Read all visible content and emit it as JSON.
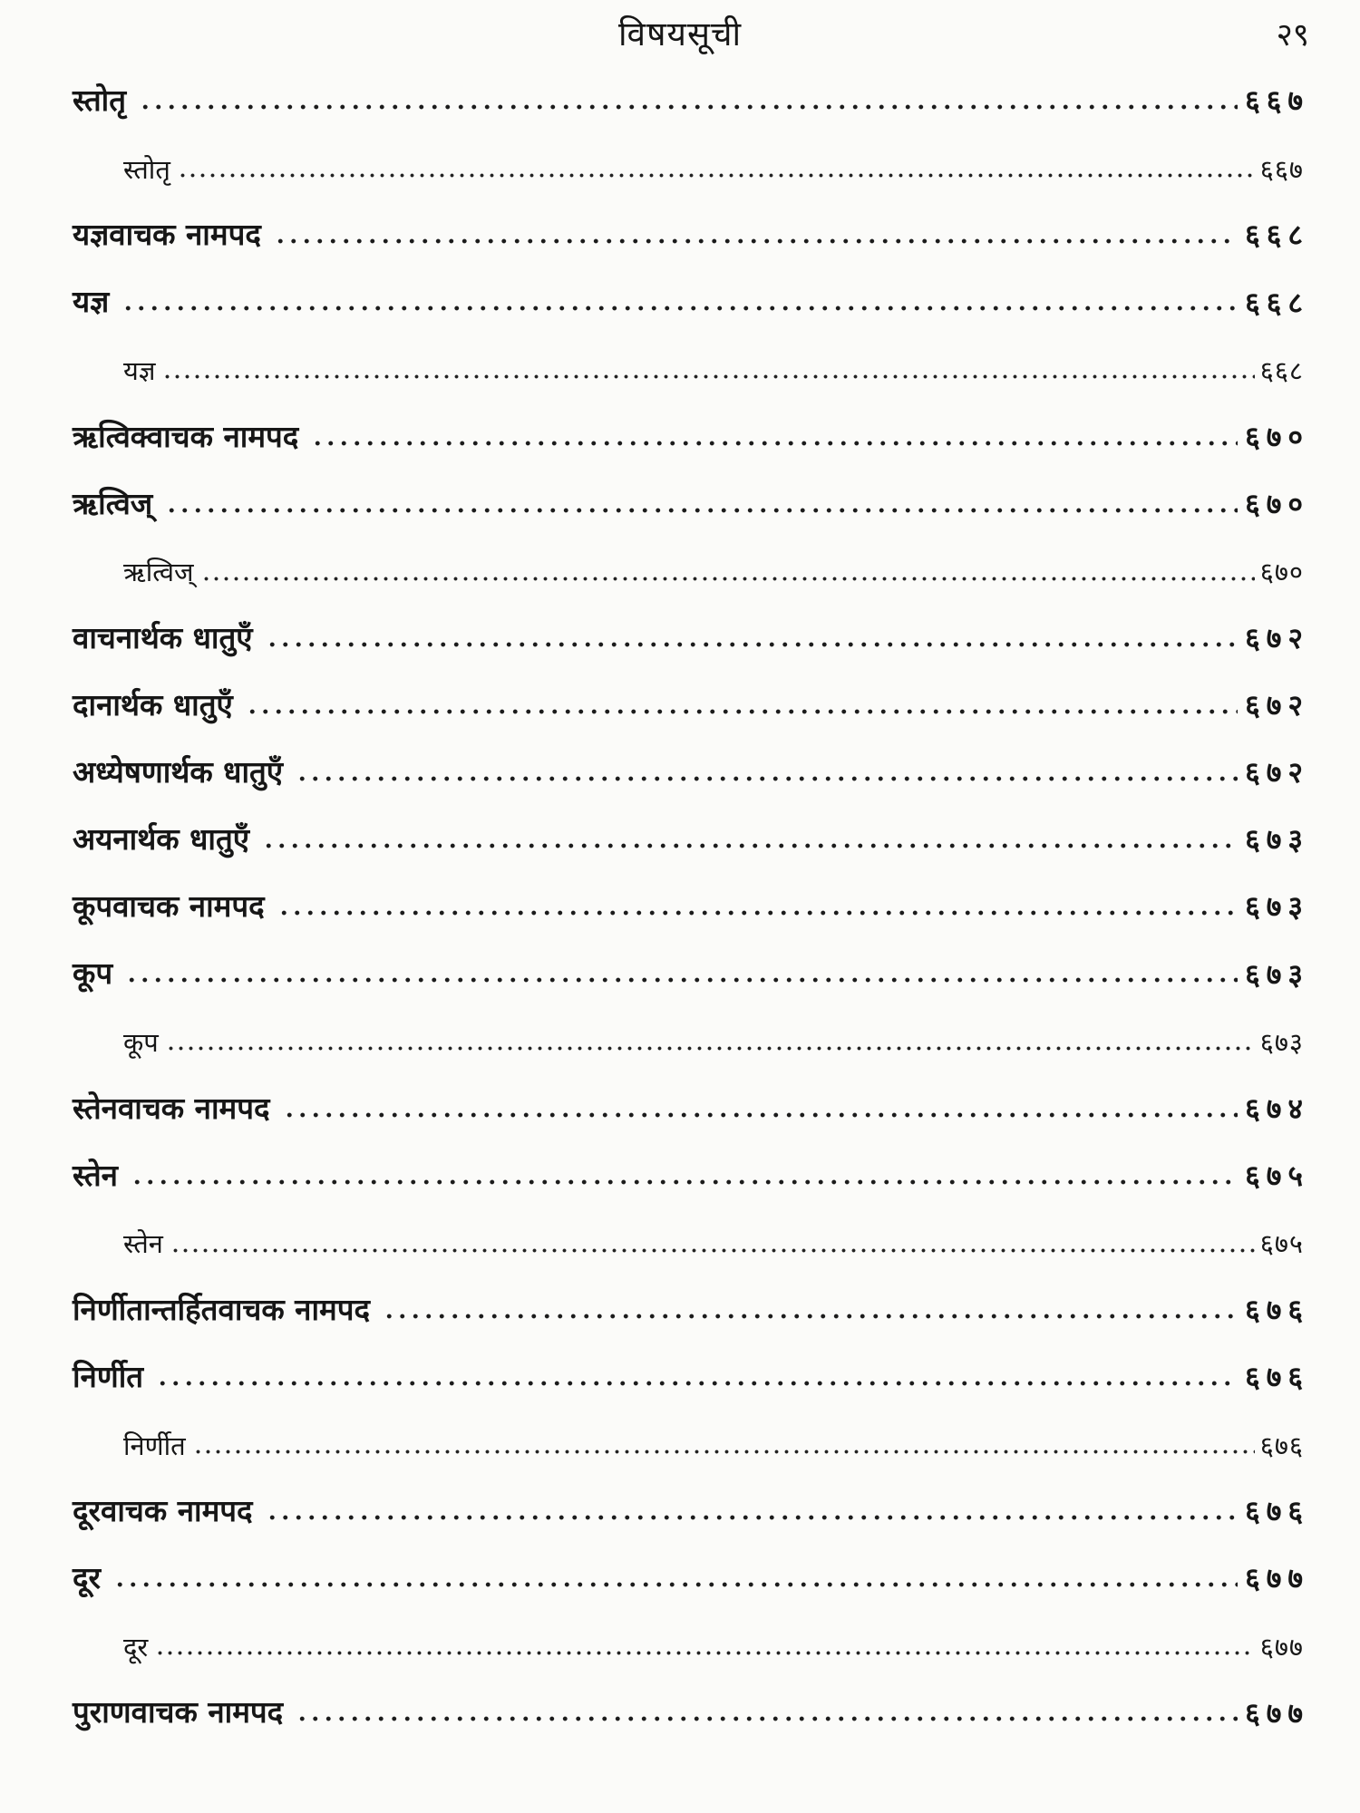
{
  "header": {
    "title": "विषयसूची",
    "page_number": "२९"
  },
  "toc": {
    "entries": [
      {
        "label": "स्तोतृ",
        "page": "६६७",
        "level": 0
      },
      {
        "label": "स्तोतृ",
        "page": "६६७",
        "level": 1
      },
      {
        "label": "यज्ञवाचक नामपद",
        "page": "६६८",
        "level": 0
      },
      {
        "label": "यज्ञ",
        "page": "६६८",
        "level": 0
      },
      {
        "label": "यज्ञ",
        "page": "६६८",
        "level": 1
      },
      {
        "label": "ऋत्विक्वाचक नामपद",
        "page": "६७०",
        "level": 0
      },
      {
        "label": "ऋत्विज्",
        "page": "६७०",
        "level": 0
      },
      {
        "label": "ऋत्विज्",
        "page": "६७०",
        "level": 1
      },
      {
        "label": "वाचनार्थक धातुएँ",
        "page": "६७२",
        "level": 0
      },
      {
        "label": "दानार्थक धातुएँ",
        "page": "६७२",
        "level": 0
      },
      {
        "label": "अध्येषणार्थक धातुएँ",
        "page": "६७२",
        "level": 0
      },
      {
        "label": "अयनार्थक धातुएँ",
        "page": "६७३",
        "level": 0
      },
      {
        "label": "कूपवाचक नामपद",
        "page": "६७३",
        "level": 0
      },
      {
        "label": "कूप",
        "page": "६७३",
        "level": 0
      },
      {
        "label": "कूप",
        "page": "६७३",
        "level": 1
      },
      {
        "label": "स्तेनवाचक नामपद",
        "page": "६७४",
        "level": 0
      },
      {
        "label": "स्तेन",
        "page": "६७५",
        "level": 0
      },
      {
        "label": "स्तेन",
        "page": "६७५",
        "level": 1
      },
      {
        "label": "निर्णीतान्तर्हितवाचक नामपद",
        "page": "६७६",
        "level": 0
      },
      {
        "label": "निर्णीत",
        "page": "६७६",
        "level": 0
      },
      {
        "label": "निर्णीत",
        "page": "६७६",
        "level": 1
      },
      {
        "label": "दूरवाचक नामपद",
        "page": "६७६",
        "level": 0
      },
      {
        "label": "दूर",
        "page": "६७७",
        "level": 0
      },
      {
        "label": "दूर",
        "page": "६७७",
        "level": 1
      },
      {
        "label": "पुराणवाचक नामपद",
        "page": "६७७",
        "level": 0
      }
    ]
  }
}
